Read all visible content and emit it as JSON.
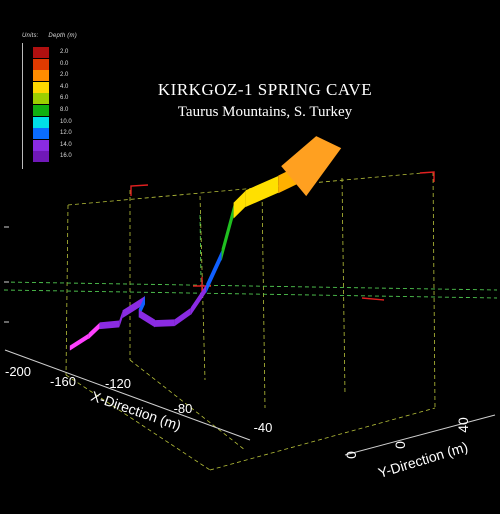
{
  "chart_data": {
    "type": "3d-line",
    "title": "KIRKGOZ-1 SPRING CAVE",
    "subtitle": "Taurus Mountains, S. Turkey",
    "legend": {
      "units_label": "Units:",
      "quantity_label": "Depth (m)",
      "entries": [
        {
          "label": "2.0",
          "color": "#b01010"
        },
        {
          "label": "0.0",
          "color": "#e03a00"
        },
        {
          "label": "2.0",
          "color": "#ff8c00"
        },
        {
          "label": "4.0",
          "color": "#ffd700"
        },
        {
          "label": "6.0",
          "color": "#9ccf00"
        },
        {
          "label": "8.0",
          "color": "#10b010"
        },
        {
          "label": "10.0",
          "color": "#00dfe8"
        },
        {
          "label": "12.0",
          "color": "#0a6cff"
        },
        {
          "label": "14.0",
          "color": "#8a2be2"
        },
        {
          "label": "16.0",
          "color": "#7018b8"
        }
      ]
    },
    "x_axis": {
      "label": "X-Direction (m)",
      "ticks": [
        "-200",
        "-160",
        "-120",
        "-80",
        "-40"
      ]
    },
    "y_axis": {
      "label": "Y-Direction (m)",
      "ticks": [
        "0",
        "0",
        "40"
      ]
    },
    "series": [
      {
        "points": [
          {
            "x": -118,
            "y": 4,
            "depth": 16.0
          },
          {
            "x": -110,
            "y": 6,
            "depth": 15.0
          },
          {
            "x": -102,
            "y": 5,
            "depth": 14.0
          },
          {
            "x": -95,
            "y": 8,
            "depth": 14.0
          },
          {
            "x": -90,
            "y": 6,
            "depth": 13.0
          },
          {
            "x": -86,
            "y": 12,
            "depth": 12.0
          },
          {
            "x": -82,
            "y": 7,
            "depth": 13.0
          },
          {
            "x": -74,
            "y": 8,
            "depth": 14.0
          },
          {
            "x": -64,
            "y": 9,
            "depth": 14.0
          },
          {
            "x": -56,
            "y": 10,
            "depth": 13.0
          },
          {
            "x": -50,
            "y": 12,
            "depth": 11.0
          },
          {
            "x": -44,
            "y": 14,
            "depth": 8.0
          },
          {
            "x": -40,
            "y": 16,
            "depth": 4.0
          },
          {
            "x": -36,
            "y": 18,
            "depth": 3.0
          },
          {
            "x": -26,
            "y": 24,
            "depth": 2.0
          },
          {
            "x": -16,
            "y": 28,
            "depth": 1.0
          },
          {
            "x": -10,
            "y": 32,
            "depth": 0.0
          }
        ]
      }
    ]
  }
}
